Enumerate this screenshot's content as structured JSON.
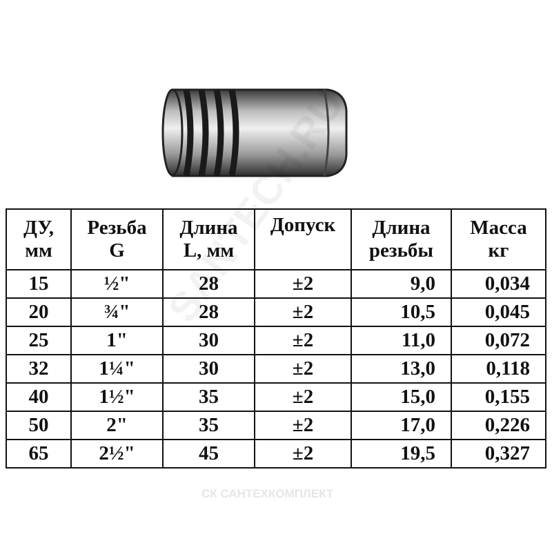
{
  "table": {
    "headers": [
      [
        "ДУ,",
        "мм"
      ],
      [
        "Резьба",
        "G"
      ],
      [
        "Длина",
        "L, мм"
      ],
      [
        "Допуск",
        ""
      ],
      [
        "Длина",
        "резьбы"
      ],
      [
        "Масса",
        "кг"
      ]
    ],
    "rows": [
      [
        "15",
        "½\"",
        "28",
        "±2",
        "9,0",
        "0,034"
      ],
      [
        "20",
        "¾\"",
        "28",
        "±2",
        "10,5",
        "0,045"
      ],
      [
        "25",
        "1\"",
        "30",
        "±2",
        "11,0",
        "0,072"
      ],
      [
        "32",
        "1¼\"",
        "30",
        "±2",
        "13,0",
        "0,118"
      ],
      [
        "40",
        "1½\"",
        "35",
        "±2",
        "15,0",
        "0,155"
      ],
      [
        "50",
        "2\"",
        "35",
        "±2",
        "17,0",
        "0,226"
      ],
      [
        "65",
        "2½\"",
        "45",
        "±2",
        "19,5",
        "0,327"
      ]
    ]
  },
  "watermarks": {
    "diagonal": "SANTECH.RU",
    "bottom": "СК САНТЕХКОМПЛЕКТ"
  }
}
